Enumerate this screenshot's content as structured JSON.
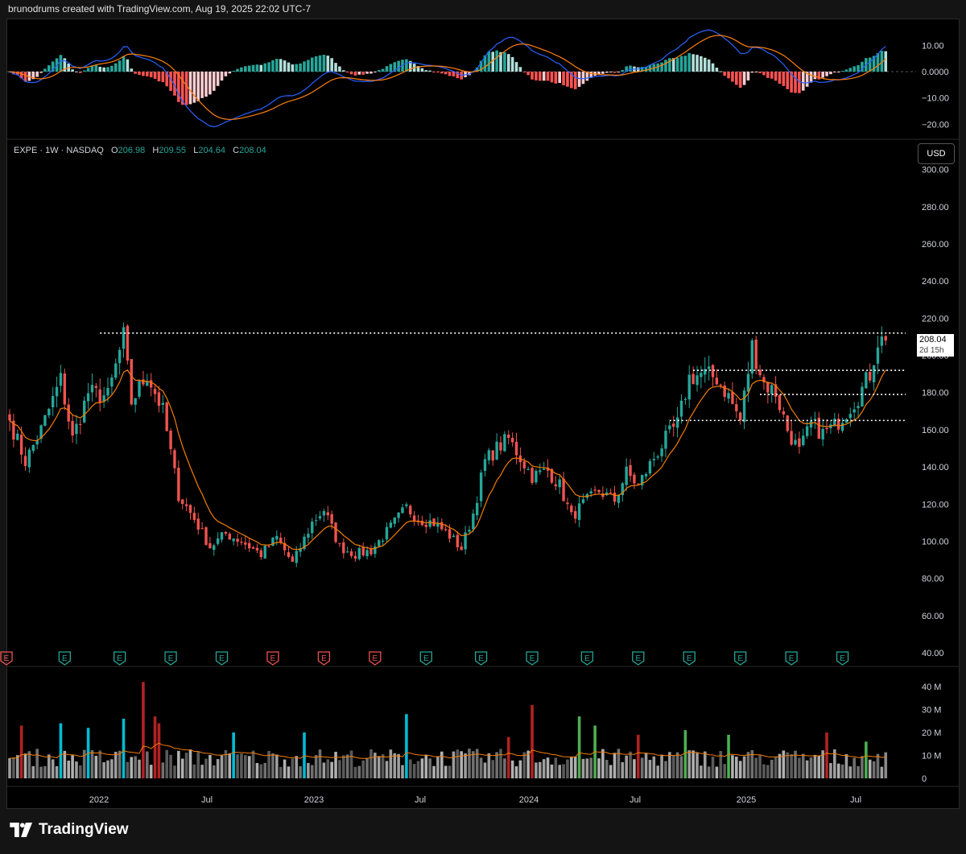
{
  "header": {
    "attribution": "brunodrums created with TradingView.com, Aug 19, 2025 22:02 UTC-7"
  },
  "legend": {
    "symbol": "EXPE · 1W · NASDAQ",
    "o_label": "O",
    "o": "206.98",
    "h_label": "H",
    "h": "209.55",
    "l_label": "L",
    "l": "204.64",
    "c_label": "C",
    "c": "208.04"
  },
  "currency_button": "USD",
  "last_price": {
    "value": "208.04",
    "countdown": "2d 15h"
  },
  "brand": "TradingView",
  "colors": {
    "background": "#000000",
    "up": "#26a69a",
    "down": "#ef5350",
    "sma": "#f57c00",
    "macd": "#2962ff",
    "signal": "#ff7f0e",
    "vol_gray": "#8a8a8a",
    "vol_red": "#b22222",
    "vol_green": "#4caf50",
    "vol_cyan": "#00bcd4",
    "level": "#ffffff",
    "earnings": "#26a69a"
  },
  "chart_data": [
    {
      "type": "candlestick",
      "symbol": "EXPE",
      "interval": "1W",
      "x_ticks": [
        "2022",
        "Jul",
        "2023",
        "Jul",
        "2024",
        "Jul",
        "2025",
        "Jul"
      ],
      "y_ticks": [
        "300.00",
        "280.00",
        "260.00",
        "240.00",
        "220.00",
        "200.00",
        "180.00",
        "160.00",
        "140.00",
        "120.00",
        "100.00",
        "80.00",
        "60.00",
        "40.00"
      ],
      "ylim": [
        40,
        300
      ],
      "weekly_close_anchors": [
        {
          "week": 0,
          "close": 165
        },
        {
          "week": 4,
          "close": 143
        },
        {
          "week": 8,
          "close": 160
        },
        {
          "week": 13,
          "close": 187
        },
        {
          "week": 16,
          "close": 155
        },
        {
          "week": 20,
          "close": 180
        },
        {
          "week": 25,
          "close": 178
        },
        {
          "week": 29,
          "close": 210
        },
        {
          "week": 31,
          "close": 175
        },
        {
          "week": 35,
          "close": 190
        },
        {
          "week": 39,
          "close": 170
        },
        {
          "week": 43,
          "close": 125
        },
        {
          "week": 47,
          "close": 112
        },
        {
          "week": 51,
          "close": 97
        },
        {
          "week": 55,
          "close": 104
        },
        {
          "week": 59,
          "close": 100
        },
        {
          "week": 64,
          "close": 93
        },
        {
          "week": 68,
          "close": 102
        },
        {
          "week": 72,
          "close": 88
        },
        {
          "week": 77,
          "close": 110
        },
        {
          "week": 80,
          "close": 117
        },
        {
          "week": 84,
          "close": 97
        },
        {
          "week": 88,
          "close": 93
        },
        {
          "week": 92,
          "close": 95
        },
        {
          "week": 96,
          "close": 105
        },
        {
          "week": 101,
          "close": 118
        },
        {
          "week": 104,
          "close": 112
        },
        {
          "week": 108,
          "close": 110
        },
        {
          "week": 112,
          "close": 103
        },
        {
          "week": 115,
          "close": 96
        },
        {
          "week": 118,
          "close": 115
        },
        {
          "week": 121,
          "close": 143
        },
        {
          "week": 124,
          "close": 150
        },
        {
          "week": 127,
          "close": 155
        },
        {
          "week": 130,
          "close": 145
        },
        {
          "week": 133,
          "close": 135
        },
        {
          "week": 137,
          "close": 138
        },
        {
          "week": 140,
          "close": 130
        },
        {
          "week": 143,
          "close": 113
        },
        {
          "week": 146,
          "close": 120
        },
        {
          "week": 150,
          "close": 127
        },
        {
          "week": 154,
          "close": 122
        },
        {
          "week": 157,
          "close": 137
        },
        {
          "week": 160,
          "close": 130
        },
        {
          "week": 164,
          "close": 145
        },
        {
          "week": 167,
          "close": 155
        },
        {
          "week": 170,
          "close": 163
        },
        {
          "week": 173,
          "close": 188
        },
        {
          "week": 176,
          "close": 190
        },
        {
          "week": 180,
          "close": 188
        },
        {
          "week": 183,
          "close": 178
        },
        {
          "week": 186,
          "close": 165
        },
        {
          "week": 189,
          "close": 205
        },
        {
          "week": 192,
          "close": 185
        },
        {
          "week": 195,
          "close": 180
        },
        {
          "week": 198,
          "close": 160
        },
        {
          "week": 201,
          "close": 148
        },
        {
          "week": 204,
          "close": 163
        },
        {
          "week": 207,
          "close": 158
        },
        {
          "week": 210,
          "close": 162
        },
        {
          "week": 213,
          "close": 170
        },
        {
          "week": 216,
          "close": 178
        },
        {
          "week": 219,
          "close": 190
        },
        {
          "week": 221,
          "close": 208
        }
      ],
      "horizontal_levels": [
        {
          "price": 212,
          "from_week": 23,
          "to_week": 224
        },
        {
          "price": 192,
          "from_week": 174,
          "to_week": 224
        },
        {
          "price": 179,
          "from_week": 191,
          "to_week": 224
        },
        {
          "price": 165,
          "from_week": 168,
          "to_week": 224
        }
      ],
      "earnings_weeks": [
        0,
        14,
        28,
        41,
        54,
        67,
        80,
        93,
        106,
        120,
        133,
        147,
        160,
        173,
        186,
        199,
        212
      ],
      "earnings_negative_weeks": [
        0,
        67,
        80,
        93
      ],
      "moving_average": {
        "type": "EMA",
        "period": 10
      }
    },
    {
      "type": "histogram",
      "name": "MACD",
      "y_ticks": [
        "10.00",
        "0.0000",
        "−10.00",
        "−20.00"
      ],
      "ylim": [
        -22,
        14
      ]
    },
    {
      "type": "bar",
      "name": "Volume",
      "y_ticks": [
        "40 M",
        "30 M",
        "20 M",
        "10 M",
        "0"
      ],
      "ylim": [
        0,
        44
      ],
      "unit": "M",
      "spikes": [
        {
          "week": 34,
          "value": 42
        },
        {
          "week": 133,
          "value": 32
        },
        {
          "week": 145,
          "value": 27
        },
        {
          "week": 172,
          "value": 21
        },
        {
          "week": 183,
          "value": 19
        },
        {
          "week": 13,
          "value": 24
        },
        {
          "week": 29,
          "value": 26
        },
        {
          "week": 101,
          "value": 28
        },
        {
          "week": 127,
          "value": 18
        },
        {
          "week": 160,
          "value": 19
        },
        {
          "week": 208,
          "value": 20
        },
        {
          "week": 218,
          "value": 16
        },
        {
          "week": 3,
          "value": 23
        },
        {
          "week": 20,
          "value": 22
        },
        {
          "week": 37,
          "value": 27
        },
        {
          "week": 38,
          "value": 24
        },
        {
          "week": 57,
          "value": 20
        },
        {
          "week": 75,
          "value": 20
        },
        {
          "week": 149,
          "value": 23
        }
      ]
    }
  ]
}
